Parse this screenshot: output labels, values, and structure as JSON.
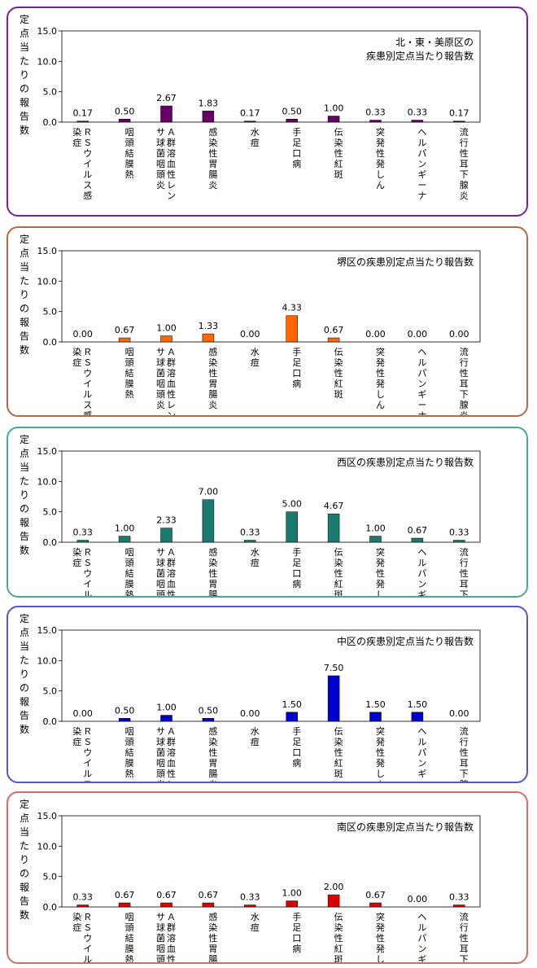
{
  "chart_data": [
    {
      "type": "bar",
      "title": "北・東・美原区の\n疾患別定点当たり報告数",
      "ylabel": "定点当たりの報告数",
      "ylim": [
        0,
        15
      ],
      "yticks": [
        "15.0",
        "10.0",
        "5.0",
        "0.0"
      ],
      "grid": false,
      "categories": [
        "ＲＳウイルス感染症",
        "咽頭結膜熱",
        "Ａ群溶血性レンサ球菌咽頭炎",
        "感染性胃腸炎",
        "水痘",
        "手足口病",
        "伝染性紅斑",
        "突発性発しん",
        "ヘルパンギーナ",
        "流行性耳下腺炎"
      ],
      "values": [
        0.17,
        0.5,
        2.67,
        1.83,
        0.17,
        0.5,
        1.0,
        0.33,
        0.33,
        0.17
      ],
      "labels": [
        "0.17",
        "0.50",
        "2.67",
        "1.83",
        "0.17",
        "0.50",
        "1.00",
        "0.33",
        "0.33",
        "0.17"
      ],
      "color": "#660066",
      "border": "#7a1fa0"
    },
    {
      "type": "bar",
      "title": "堺区の疾患別定点当たり報告数",
      "ylabel": "定点当たりの報告数",
      "ylim": [
        0,
        15
      ],
      "yticks": [
        "15.0",
        "10.0",
        "5.0",
        "0.0"
      ],
      "grid": false,
      "categories": [
        "ＲＳウイルス感染症",
        "咽頭結膜熱",
        "Ａ群溶血性レンサ球菌咽頭炎",
        "感染性胃腸炎",
        "水痘",
        "手足口病",
        "伝染性紅斑",
        "突発性発しん",
        "ヘルパンギーナ",
        "流行性耳下腺炎"
      ],
      "values": [
        0.0,
        0.67,
        1.0,
        1.33,
        0.0,
        4.33,
        0.67,
        0.0,
        0.0,
        0.0
      ],
      "labels": [
        "0.00",
        "0.67",
        "1.00",
        "1.33",
        "0.00",
        "4.33",
        "0.67",
        "0.00",
        "0.00",
        "0.00"
      ],
      "color": "#ff6600",
      "border": "#b5684a"
    },
    {
      "type": "bar",
      "title": "西区の疾患別定点当たり報告数",
      "ylabel": "定点当たりの報告数",
      "ylim": [
        0,
        15
      ],
      "yticks": [
        "15.0",
        "10.0",
        "5.0",
        "0.0"
      ],
      "grid": false,
      "categories": [
        "ＲＳウイルス感染症",
        "咽頭結膜熱",
        "Ａ群溶血性レンサ球菌咽頭炎",
        "感染性胃腸炎",
        "水痘",
        "手足口病",
        "伝染性紅斑",
        "突発性発しん",
        "ヘルパンギーナ",
        "流行性耳下腺炎"
      ],
      "values": [
        0.33,
        1.0,
        2.33,
        7.0,
        0.33,
        5.0,
        4.67,
        1.0,
        0.67,
        0.33
      ],
      "labels": [
        "0.33",
        "1.00",
        "2.33",
        "7.00",
        "0.33",
        "5.00",
        "4.67",
        "1.00",
        "0.67",
        "0.33"
      ],
      "color": "#1a7a6e",
      "border": "#4aa89a"
    },
    {
      "type": "bar",
      "title": "中区の疾患別定点当たり報告数",
      "ylabel": "定点当たりの報告数",
      "ylim": [
        0,
        15
      ],
      "yticks": [
        "15.0",
        "10.0",
        "5.0",
        "0.0"
      ],
      "grid": false,
      "categories": [
        "ＲＳウイルス感染症",
        "咽頭結膜熱",
        "Ａ群溶血性レンサ球菌咽頭炎",
        "感染性胃腸炎",
        "水痘",
        "手足口病",
        "伝染性紅斑",
        "突発性発しん",
        "ヘルパンギーナ",
        "流行性耳下腺炎"
      ],
      "values": [
        0.0,
        0.5,
        1.0,
        0.5,
        0.0,
        1.5,
        7.5,
        1.5,
        1.5,
        0.0
      ],
      "labels": [
        "0.00",
        "0.50",
        "1.00",
        "0.50",
        "0.00",
        "1.50",
        "7.50",
        "1.50",
        "1.50",
        "0.00"
      ],
      "color": "#0000cc",
      "border": "#5555cc"
    },
    {
      "type": "bar",
      "title": "南区の疾患別定点当たり報告数",
      "ylabel": "定点当たりの報告数",
      "ylim": [
        0,
        15
      ],
      "yticks": [
        "15.0",
        "10.0",
        "5.0",
        "0.0"
      ],
      "grid": false,
      "categories": [
        "ＲＳウイルス感染症",
        "咽頭結膜熱",
        "Ａ群溶血性レンサ球菌咽頭炎",
        "感染性胃腸炎",
        "水痘",
        "手足口病",
        "伝染性紅斑",
        "突発性発しん",
        "ヘルパンギーナ",
        "流行性耳下腺炎"
      ],
      "values": [
        0.33,
        0.67,
        0.67,
        0.67,
        0.33,
        1.0,
        2.0,
        0.67,
        0.0,
        0.33
      ],
      "labels": [
        "0.33",
        "0.67",
        "0.67",
        "0.67",
        "0.33",
        "1.00",
        "2.00",
        "0.67",
        "0.00",
        "0.33"
      ],
      "color": "#dd0000",
      "border": "#dd6a6a"
    }
  ]
}
